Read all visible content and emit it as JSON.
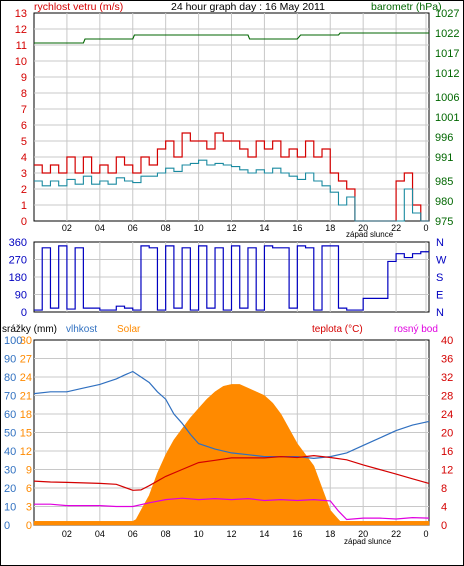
{
  "colors": {
    "red": "#d40000",
    "green": "#006600",
    "blue": "#0000c0",
    "cyan": "#1a8aa0",
    "orange": "#ff8a00",
    "magenta": "#e000e0",
    "teal_axis": "#3070c0",
    "grid": "#c8c8c8",
    "frame": "#000000"
  },
  "chart_data": [
    {
      "type": "line",
      "title": "24 hour graph day : 16 May 2011",
      "left_label": "rychlost vetru (m/s)",
      "right_label": "barometr (hPa)",
      "sunset_label": "západ slunce",
      "x_ticks": [
        "02",
        "04",
        "06",
        "08",
        "10",
        "12",
        "14",
        "16",
        "18",
        "20",
        "22",
        "0"
      ],
      "y_left_ticks": [
        "0",
        "1",
        "2",
        "3",
        "4",
        "5",
        "6",
        "7",
        "8",
        "9",
        "10",
        "11",
        "12",
        "13"
      ],
      "y_right_ticks": [
        "975",
        "980",
        "985",
        "991",
        "996",
        "1001",
        "1006",
        "1012",
        "1017",
        "1022",
        "1027"
      ],
      "ylim_left": [
        0,
        13
      ],
      "ylim_right": [
        975,
        1027
      ],
      "grid": true,
      "series": [
        {
          "role": "pressure",
          "color": "green",
          "axis": "right",
          "x": [
            0,
            3,
            3.1,
            6,
            6.1,
            9,
            9.1,
            13,
            13.1,
            16,
            16.2,
            18.5,
            18.6,
            24
          ],
          "values": [
            1019.5,
            1019.5,
            1020.5,
            1020.5,
            1021.5,
            1021.5,
            1021.5,
            1021.5,
            1020.5,
            1020.5,
            1021.5,
            1021.5,
            1022,
            1022
          ]
        },
        {
          "role": "gust",
          "color": "red",
          "axis": "left",
          "x": [
            0,
            0.5,
            1,
            1.5,
            2,
            2.5,
            3,
            3.5,
            4,
            4.5,
            5,
            5.5,
            6,
            6.5,
            7,
            7.5,
            8,
            8.5,
            9,
            9.5,
            10,
            10.5,
            11,
            11.5,
            12,
            12.5,
            13,
            13.5,
            14,
            14.5,
            15,
            15.5,
            16,
            16.5,
            17,
            17.5,
            18,
            18.5,
            19,
            19.5,
            20,
            20.5,
            21,
            21.5,
            22,
            22.5,
            23,
            23.5
          ],
          "values": [
            3.5,
            3,
            3.5,
            3,
            4,
            3,
            4,
            3,
            3.5,
            3,
            4,
            3.5,
            3,
            4,
            3.5,
            4.5,
            5,
            4,
            5.5,
            5,
            5,
            4.5,
            5.5,
            5,
            5,
            4.5,
            4,
            5,
            4.5,
            5,
            4,
            4.5,
            4,
            5,
            4,
            4.5,
            3,
            2.5,
            2,
            0,
            0,
            0,
            0,
            0,
            2.5,
            3,
            1,
            0
          ]
        },
        {
          "role": "average",
          "color": "cyan",
          "axis": "left",
          "x": [
            0,
            0.5,
            1,
            1.5,
            2,
            2.5,
            3,
            3.5,
            4,
            4.5,
            5,
            5.5,
            6,
            6.5,
            7,
            7.5,
            8,
            8.5,
            9,
            9.5,
            10,
            10.5,
            11,
            11.5,
            12,
            12.5,
            13,
            13.5,
            14,
            14.5,
            15,
            15.5,
            16,
            16.5,
            17,
            17.5,
            18,
            18.5,
            19,
            19.5,
            20,
            20.5,
            21,
            21.5,
            22,
            22.5,
            23,
            23.5
          ],
          "values": [
            2.5,
            2.2,
            2.5,
            2.2,
            2.6,
            2.3,
            2.8,
            2.3,
            2.5,
            2.3,
            2.7,
            2.5,
            2.4,
            2.8,
            2.8,
            3,
            3.3,
            3.1,
            3.5,
            3.6,
            3.8,
            3.5,
            3.6,
            3.5,
            3.4,
            3.2,
            3,
            3.2,
            3,
            3.3,
            3,
            2.8,
            2.6,
            3,
            2.5,
            2.2,
            1.8,
            1,
            1.5,
            0,
            0,
            0,
            0,
            0,
            0,
            2,
            0.5,
            0
          ]
        }
      ]
    },
    {
      "type": "line",
      "title": "",
      "y_left_ticks": [
        "0",
        "90",
        "180",
        "270",
        "360"
      ],
      "y_right_ticks": [
        "N",
        "E",
        "S",
        "W",
        "N"
      ],
      "ylim": [
        0,
        360
      ],
      "grid": true,
      "series": [
        {
          "role": "wind_direction",
          "color": "blue",
          "x": [
            0,
            0.5,
            1,
            1.5,
            2,
            2.5,
            3,
            3.5,
            4,
            4.5,
            5,
            5.5,
            6,
            6.5,
            7,
            7.5,
            8,
            8.5,
            9,
            9.5,
            10,
            10.5,
            11,
            11.5,
            12,
            12.5,
            13,
            13.5,
            14,
            14.5,
            15,
            15.5,
            16,
            16.5,
            17,
            17.5,
            18,
            18.5,
            19,
            19.5,
            20,
            20.5,
            21,
            21.5,
            22,
            22.5,
            23,
            23.5
          ],
          "values": [
            10,
            330,
            20,
            340,
            15,
            330,
            20,
            20,
            10,
            10,
            30,
            20,
            10,
            340,
            330,
            10,
            340,
            20,
            330,
            10,
            340,
            20,
            330,
            10,
            340,
            20,
            330,
            10,
            340,
            330,
            330,
            20,
            340,
            330,
            10,
            340,
            340,
            20,
            10,
            10,
            70,
            70,
            70,
            260,
            300,
            280,
            300,
            310
          ]
        }
      ]
    },
    {
      "type": "area",
      "title": "",
      "labels": {
        "rain": "srážky (mm)",
        "humidity": "vlhkost",
        "solar": "Solar",
        "temp": "teplota (°C)",
        "dew": "rosný bod"
      },
      "sunset_label": "západ slunce",
      "x_ticks": [
        "02",
        "04",
        "06",
        "08",
        "10",
        "12",
        "14",
        "16",
        "18",
        "20",
        "22",
        "0"
      ],
      "y_rain_ticks": [
        "0",
        "3",
        "6",
        "9",
        "12",
        "15",
        "18",
        "21",
        "24",
        "27",
        "30"
      ],
      "y_humidity_ticks": [
        "0",
        "10",
        "20",
        "30",
        "40",
        "50",
        "60",
        "70",
        "80",
        "90",
        "100"
      ],
      "y_temp_ticks": [
        "0",
        "4",
        "8",
        "12",
        "16",
        "20",
        "24",
        "28",
        "32",
        "36",
        "40"
      ],
      "ylim_percent": [
        0,
        100
      ],
      "ylim_temp": [
        0,
        40
      ],
      "grid": true,
      "series": [
        {
          "role": "solar_percent",
          "color": "orange",
          "x": [
            0,
            6,
            6.2,
            6.5,
            7,
            7.5,
            8,
            8.5,
            9,
            9.5,
            10,
            10.5,
            11,
            11.5,
            12,
            12.5,
            13,
            13.5,
            14,
            14.5,
            15,
            15.5,
            16,
            16.5,
            17,
            17.5,
            18,
            18.3,
            18.6,
            24
          ],
          "values": [
            2,
            2,
            3,
            8,
            16,
            28,
            38,
            46,
            52,
            58,
            63,
            68,
            72,
            75,
            76,
            76,
            74,
            72,
            70,
            66,
            60,
            52,
            44,
            38,
            32,
            20,
            8,
            5,
            2,
            2
          ]
        },
        {
          "role": "humidity",
          "color": "teal_axis",
          "x": [
            0,
            1,
            2,
            3,
            4,
            5,
            5.5,
            6,
            6.5,
            7,
            7.5,
            8,
            8.5,
            9,
            9.5,
            10,
            11,
            12,
            13,
            14,
            15,
            16,
            17,
            18,
            19,
            20,
            21,
            22,
            23,
            24
          ],
          "values": [
            71,
            72,
            72,
            74,
            76,
            79,
            81,
            83,
            80,
            77,
            72,
            68,
            60,
            55,
            49,
            44,
            41,
            39,
            38,
            37,
            37,
            37,
            36,
            37,
            39,
            43,
            47,
            51,
            54,
            56
          ]
        },
        {
          "role": "temperature",
          "color": "red",
          "x": [
            0,
            1,
            2,
            3,
            4,
            5,
            6,
            6.5,
            7,
            8,
            9,
            10,
            11,
            12,
            13,
            14,
            15,
            16,
            17,
            18,
            19,
            20,
            21,
            22,
            23,
            24
          ],
          "values": [
            9.5,
            9.3,
            9.2,
            9.1,
            9,
            8.8,
            7.5,
            7.6,
            8.5,
            10.5,
            12,
            13.5,
            14,
            14.5,
            14.5,
            14.5,
            14.8,
            14.6,
            15,
            14.6,
            14.1,
            13,
            12,
            11,
            10,
            9
          ]
        },
        {
          "role": "dew_point",
          "color": "magenta",
          "x": [
            0,
            1,
            2,
            3,
            4,
            5,
            6,
            7,
            8,
            9,
            10,
            11,
            12,
            13,
            14,
            15,
            16,
            17,
            18,
            18.5,
            19,
            20,
            21,
            22,
            23,
            24
          ],
          "values": [
            4.5,
            4.5,
            4.2,
            4.2,
            4.2,
            4,
            4,
            4.8,
            5.5,
            5.8,
            5.5,
            5.7,
            5.5,
            5.7,
            5.3,
            5.5,
            5.3,
            5.5,
            5.2,
            3,
            1.2,
            1.5,
            1.5,
            1.3,
            1.6,
            1.5
          ]
        },
        {
          "role": "rain",
          "color": "orange",
          "x": [
            0,
            24
          ],
          "values": [
            0,
            0
          ]
        }
      ]
    }
  ]
}
